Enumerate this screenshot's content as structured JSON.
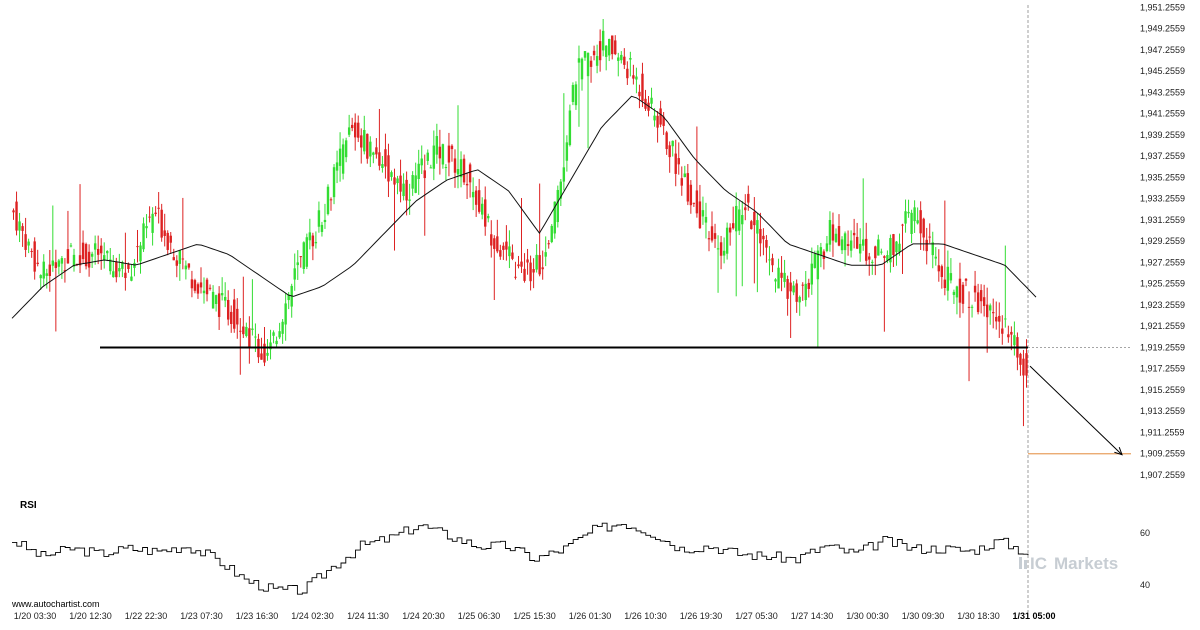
{
  "watermark": "www.autochartist.com",
  "brand": {
    "prefix": "IC",
    "name": "Markets"
  },
  "colors": {
    "bull": "#33dd33",
    "bear": "#dd2222",
    "ma": "#111111",
    "support": "#000000",
    "target": "#e8a060",
    "rsi": "#000000",
    "arrow": "#000000",
    "guide": "#888888"
  },
  "chart_data": {
    "type": "candlestick",
    "y_ticks": [
      "1,951.2559",
      "1,949.2559",
      "1,947.2559",
      "1,945.2559",
      "1,943.2559",
      "1,941.2559",
      "1,939.2559",
      "1,937.2559",
      "1,935.2559",
      "1,933.2559",
      "1,931.2559",
      "1,929.2559",
      "1,927.2559",
      "1,925.2559",
      "1,923.2559",
      "1,921.2559",
      "1,919.2559",
      "1,917.2559",
      "1,915.2559",
      "1,913.2559",
      "1,911.2559",
      "1,909.2559",
      "1,907.2559"
    ],
    "x_ticks": [
      "1/20 03:30",
      "1/20 12:30",
      "1/22 22:30",
      "1/23 07:30",
      "1/23 16:30",
      "1/24 02:30",
      "1/24 11:30",
      "1/24 20:30",
      "1/25 06:30",
      "1/25 15:30",
      "1/26 01:30",
      "1/26 10:30",
      "1/26 19:30",
      "1/27 05:30",
      "1/27 14:30",
      "1/30 00:30",
      "1/30 09:30",
      "1/30 18:30",
      "1/31 05:00"
    ],
    "ylim": [
      1906.5,
      1951.3
    ],
    "support_level": 1919.2559,
    "target_level": 1909.2559,
    "forecast": {
      "from": 1917.5,
      "to": 1909.2559
    },
    "moving_average_key": [
      1922,
      1925,
      1927,
      1927.5,
      1927,
      1928,
      1929,
      1928,
      1926,
      1924,
      1925,
      1927,
      1930,
      1933,
      1935,
      1936,
      1934,
      1930,
      1935,
      1940,
      1943,
      1941,
      1937,
      1934,
      1932,
      1929,
      1928,
      1927,
      1927,
      1929,
      1929,
      1928,
      1927,
      1924
    ],
    "price_key": [
      1932,
      1926,
      1928,
      1928,
      1926,
      1932,
      1927,
      1924,
      1922,
      1918,
      1926,
      1932,
      1940,
      1937,
      1934,
      1938,
      1936,
      1930,
      1926,
      1928,
      1945,
      1948,
      1945,
      1940,
      1934,
      1928,
      1933,
      1926,
      1924,
      1930,
      1929,
      1928,
      1932,
      1926,
      1924,
      1922,
      1917
    ],
    "rsi": {
      "label": "RSI",
      "levels": [
        60,
        40
      ],
      "ylim": [
        35,
        68
      ],
      "key": [
        57,
        51,
        54,
        52,
        54,
        53,
        55,
        50,
        42,
        38,
        38,
        47,
        55,
        58,
        63,
        59,
        55,
        55,
        50,
        54,
        61,
        64,
        60,
        54,
        55,
        52,
        51,
        50,
        55,
        52,
        57,
        54,
        54,
        53,
        57,
        52
      ]
    }
  }
}
